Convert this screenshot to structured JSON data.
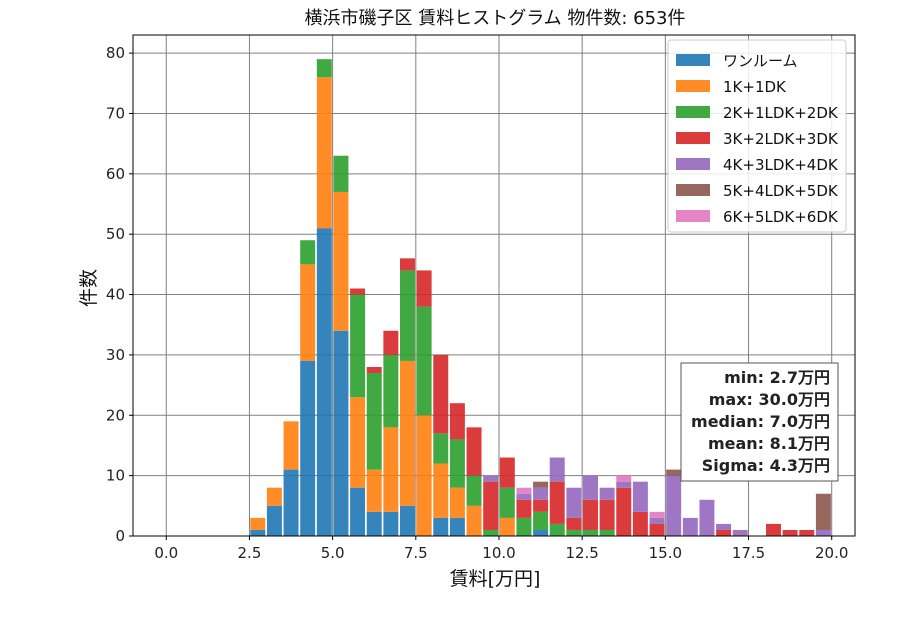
{
  "chart_data": {
    "type": "bar",
    "stacked": true,
    "title": "横浜市磯子区 賃料ヒストグラム  物件数: 653件",
    "xlabel": "賃料[万円]",
    "ylabel": "件数",
    "xlim": [
      -1.0,
      20.7
    ],
    "ylim": [
      0,
      83
    ],
    "grid": true,
    "legend_position": "top-right",
    "bin_width": 0.5,
    "x_ticks": [
      0.0,
      2.5,
      5.0,
      7.5,
      10.0,
      12.5,
      15.0,
      17.5,
      20.0
    ],
    "x_tick_labels": [
      "0.0",
      "2.5",
      "5.0",
      "7.5",
      "10.0",
      "12.5",
      "15.0",
      "17.5",
      "20.0"
    ],
    "y_ticks": [
      0,
      10,
      20,
      30,
      40,
      50,
      60,
      70,
      80
    ],
    "y_tick_labels": [
      "0",
      "10",
      "20",
      "30",
      "40",
      "50",
      "60",
      "70",
      "80"
    ],
    "x": [
      2.5,
      3.0,
      3.5,
      4.0,
      4.5,
      5.0,
      5.5,
      6.0,
      6.5,
      7.0,
      7.5,
      8.0,
      8.5,
      9.0,
      9.5,
      10.0,
      10.5,
      11.0,
      11.5,
      12.0,
      12.5,
      13.0,
      13.5,
      14.0,
      14.5,
      15.0,
      15.5,
      16.0,
      16.5,
      17.0,
      17.5,
      18.0,
      18.5,
      19.0,
      19.5
    ],
    "series": [
      {
        "name": "ワンルーム",
        "color": "#1f77b4",
        "values": [
          1,
          5,
          11,
          29,
          51,
          34,
          8,
          4,
          4,
          5,
          0,
          3,
          3,
          0,
          0,
          0,
          0,
          1,
          0,
          0,
          0,
          0,
          0,
          0,
          0,
          0,
          0,
          0,
          0,
          0,
          0,
          0,
          0,
          0,
          0
        ]
      },
      {
        "name": "1K+1DK",
        "color": "#ff7f0e",
        "values": [
          2,
          3,
          8,
          16,
          25,
          23,
          15,
          7,
          14,
          24,
          20,
          9,
          5,
          5,
          0,
          3,
          0,
          0,
          0,
          0,
          0,
          0,
          0,
          0,
          0,
          0,
          0,
          0,
          0,
          0,
          0,
          0,
          0,
          0,
          0
        ]
      },
      {
        "name": "2K+1LDK+2DK",
        "color": "#2ca02c",
        "values": [
          0,
          0,
          0,
          4,
          3,
          6,
          17,
          16,
          12,
          15,
          18,
          5,
          8,
          5,
          1,
          5,
          3,
          3,
          2,
          1,
          1,
          1,
          0,
          0,
          0,
          0,
          0,
          0,
          0,
          0,
          0,
          0,
          0,
          0,
          0
        ]
      },
      {
        "name": "3K+2LDK+3DK",
        "color": "#d62728",
        "values": [
          0,
          0,
          0,
          0,
          0,
          0,
          1,
          1,
          4,
          2,
          6,
          13,
          6,
          8,
          8,
          5,
          3,
          2,
          7,
          2,
          5,
          5,
          8,
          4,
          2,
          0,
          0,
          0,
          1,
          0,
          0,
          2,
          1,
          1,
          0
        ]
      },
      {
        "name": "4K+3LDK+4DK",
        "color": "#9467bd",
        "values": [
          0,
          0,
          0,
          0,
          0,
          0,
          0,
          0,
          0,
          0,
          0,
          0,
          0,
          0,
          1,
          0,
          1,
          2,
          4,
          5,
          4,
          2,
          1,
          5,
          1,
          10,
          3,
          6,
          1,
          1,
          0,
          0,
          0,
          0,
          1
        ]
      },
      {
        "name": "5K+4LDK+5DK",
        "color": "#8c564b",
        "values": [
          0,
          0,
          0,
          0,
          0,
          0,
          0,
          0,
          0,
          0,
          0,
          0,
          0,
          0,
          0,
          0,
          0,
          1,
          0,
          0,
          0,
          0,
          0,
          0,
          0,
          1,
          0,
          0,
          0,
          0,
          0,
          0,
          0,
          0,
          6
        ]
      },
      {
        "name": "6K+5LDK+6DK",
        "color": "#e377c2",
        "values": [
          0,
          0,
          0,
          0,
          0,
          0,
          0,
          0,
          0,
          0,
          0,
          0,
          0,
          0,
          0,
          0,
          1,
          0,
          0,
          0,
          0,
          0,
          1,
          0,
          1,
          0,
          0,
          0,
          0,
          0,
          0,
          0,
          0,
          0,
          0
        ]
      }
    ],
    "annotations": [
      "min: 2.7万円",
      "max: 30.0万円",
      "median: 7.0万円",
      "mean: 8.1万円",
      "Sigma: 4.3万円"
    ]
  }
}
